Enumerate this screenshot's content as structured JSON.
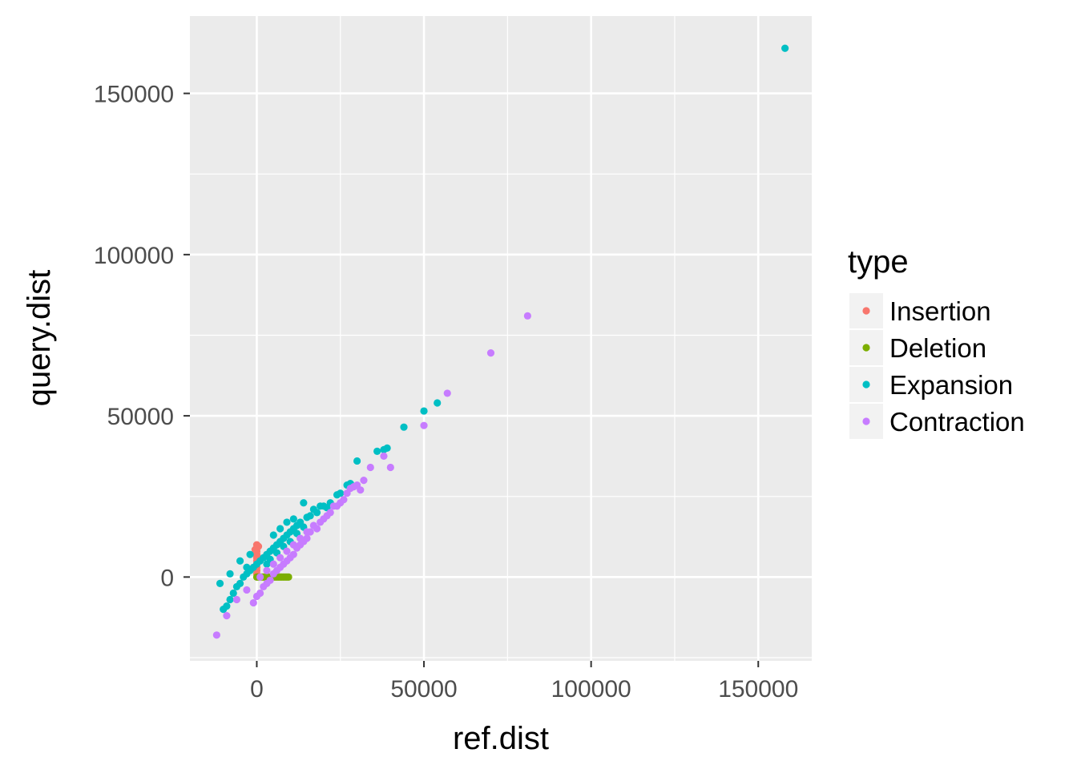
{
  "chart_data": {
    "type": "scatter",
    "xlabel": "ref.dist",
    "ylabel": "query.dist",
    "xlim": [
      -20000,
      166000
    ],
    "ylim": [
      -26000,
      174000
    ],
    "x_ticks": [
      0,
      50000,
      100000,
      150000
    ],
    "x_tick_labels": [
      "0",
      "50000",
      "100000",
      "150000"
    ],
    "y_ticks": [
      0,
      50000,
      100000,
      150000
    ],
    "y_tick_labels": [
      "0",
      "50000",
      "100000",
      "150000"
    ],
    "grid": true,
    "background": "#ebebeb",
    "legend": {
      "title": "type",
      "placement": "right",
      "entries": [
        "Insertion",
        "Deletion",
        "Expansion",
        "Contraction"
      ]
    },
    "series": [
      {
        "name": "Insertion",
        "color": "#f8766d",
        "points": [
          [
            0,
            10000
          ],
          [
            0,
            9000
          ],
          [
            0,
            8000
          ],
          [
            0,
            7000
          ],
          [
            0,
            6000
          ],
          [
            0,
            5000
          ],
          [
            0,
            4000
          ],
          [
            0,
            3000
          ],
          [
            0,
            2000
          ],
          [
            0,
            1000
          ],
          [
            -500,
            8500
          ],
          [
            500,
            9500
          ],
          [
            0,
            6500
          ]
        ]
      },
      {
        "name": "Deletion",
        "color": "#7cae00",
        "points": [
          [
            0,
            0
          ],
          [
            1000,
            0
          ],
          [
            2000,
            0
          ],
          [
            3000,
            0
          ],
          [
            4000,
            0
          ],
          [
            5000,
            0
          ],
          [
            6000,
            0
          ],
          [
            7000,
            0
          ],
          [
            8000,
            0
          ],
          [
            9000,
            0
          ],
          [
            1500,
            0
          ],
          [
            2500,
            0
          ],
          [
            3500,
            0
          ],
          [
            4500,
            0
          ],
          [
            5500,
            0
          ],
          [
            6500,
            0
          ],
          [
            7500,
            0
          ],
          [
            8500,
            0
          ],
          [
            9500,
            0
          ],
          [
            500,
            0
          ]
        ]
      },
      {
        "name": "Expansion",
        "color": "#00bfc4",
        "points": [
          [
            158000,
            164000
          ],
          [
            54000,
            54000
          ],
          [
            50000,
            51500
          ],
          [
            44000,
            46500
          ],
          [
            39000,
            40000
          ],
          [
            38000,
            39500
          ],
          [
            36000,
            39000
          ],
          [
            28000,
            29000
          ],
          [
            25000,
            26000
          ],
          [
            22000,
            23000
          ],
          [
            20000,
            22000
          ],
          [
            18000,
            20000
          ],
          [
            16000,
            19000
          ],
          [
            15000,
            18500
          ],
          [
            14000,
            23000
          ],
          [
            13000,
            17000
          ],
          [
            12000,
            16000
          ],
          [
            11000,
            15000
          ],
          [
            10000,
            14000
          ],
          [
            9000,
            13000
          ],
          [
            8000,
            12000
          ],
          [
            7000,
            11000
          ],
          [
            6000,
            10000
          ],
          [
            5000,
            9000
          ],
          [
            4000,
            8000
          ],
          [
            3000,
            7000
          ],
          [
            2000,
            6000
          ],
          [
            1000,
            5000
          ],
          [
            0,
            4000
          ],
          [
            -1000,
            3000
          ],
          [
            -2000,
            2000
          ],
          [
            -3000,
            1000
          ],
          [
            -4000,
            0
          ],
          [
            -5000,
            -2000
          ],
          [
            -6000,
            -3000
          ],
          [
            -7000,
            -5000
          ],
          [
            -8000,
            -7000
          ],
          [
            -9000,
            -9000
          ],
          [
            -10000,
            -10000
          ],
          [
            -11000,
            -2000
          ],
          [
            -8000,
            1000
          ],
          [
            -5000,
            5000
          ],
          [
            -3000,
            3000
          ],
          [
            -2000,
            7000
          ],
          [
            5000,
            13000
          ],
          [
            7000,
            15000
          ],
          [
            9000,
            17000
          ],
          [
            11000,
            18000
          ],
          [
            17000,
            21000
          ],
          [
            19000,
            22000
          ],
          [
            30000,
            36000
          ],
          [
            27000,
            28500
          ],
          [
            24000,
            25500
          ],
          [
            21000,
            21500
          ],
          [
            3000,
            4000
          ],
          [
            4000,
            5500
          ],
          [
            6000,
            7500
          ],
          [
            8000,
            9500
          ],
          [
            10000,
            11000
          ],
          [
            12000,
            13500
          ],
          [
            14000,
            15500
          ]
        ]
      },
      {
        "name": "Contraction",
        "color": "#c77cff",
        "points": [
          [
            81000,
            81000
          ],
          [
            70000,
            69500
          ],
          [
            57000,
            57000
          ],
          [
            50000,
            47000
          ],
          [
            40000,
            34000
          ],
          [
            38000,
            37500
          ],
          [
            34000,
            34000
          ],
          [
            32000,
            30000
          ],
          [
            31000,
            27000
          ],
          [
            28000,
            27500
          ],
          [
            25000,
            23000
          ],
          [
            23000,
            22000
          ],
          [
            21000,
            19000
          ],
          [
            19000,
            17000
          ],
          [
            18000,
            15000
          ],
          [
            17000,
            16000
          ],
          [
            16000,
            14000
          ],
          [
            15000,
            12000
          ],
          [
            14000,
            11000
          ],
          [
            13000,
            10000
          ],
          [
            12000,
            9000
          ],
          [
            11000,
            7000
          ],
          [
            10000,
            6000
          ],
          [
            9000,
            5000
          ],
          [
            8000,
            4000
          ],
          [
            7000,
            3000
          ],
          [
            6000,
            2000
          ],
          [
            5000,
            1000
          ],
          [
            4000,
            -1000
          ],
          [
            3000,
            -2000
          ],
          [
            2000,
            -3000
          ],
          [
            1000,
            -5000
          ],
          [
            0,
            -6000
          ],
          [
            -1000,
            -8000
          ],
          [
            -9000,
            -12000
          ],
          [
            -12000,
            -18000
          ],
          [
            -6000,
            -7000
          ],
          [
            -3000,
            -4000
          ],
          [
            9000,
            8000
          ],
          [
            11000,
            10000
          ],
          [
            13000,
            12000
          ],
          [
            15000,
            14000
          ],
          [
            20000,
            18000
          ],
          [
            22000,
            20000
          ],
          [
            24000,
            22000
          ],
          [
            26000,
            24000
          ],
          [
            27000,
            26000
          ],
          [
            29000,
            28000
          ],
          [
            30000,
            28500
          ],
          [
            7000,
            6000
          ],
          [
            5000,
            4000
          ],
          [
            3000,
            2000
          ],
          [
            1000,
            0
          ]
        ]
      }
    ]
  }
}
